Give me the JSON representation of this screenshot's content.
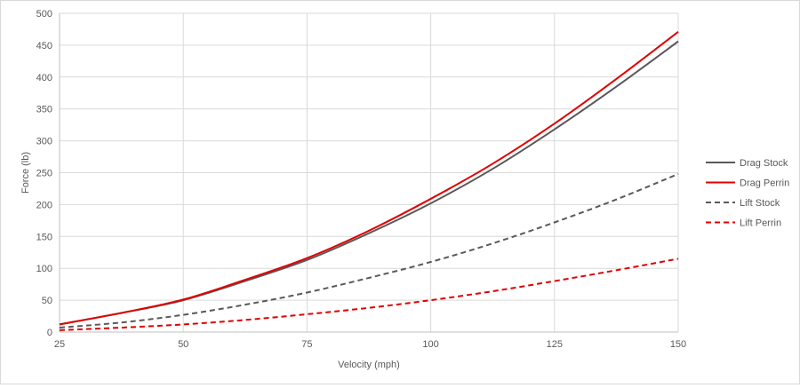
{
  "chart_data": {
    "type": "line",
    "xlabel": "Velocity (mph)",
    "ylabel": "Force (lb)",
    "xlim": [
      25,
      150
    ],
    "ylim": [
      0,
      500
    ],
    "x_ticks": [
      25,
      50,
      75,
      100,
      125,
      150
    ],
    "y_ticks": [
      0,
      50,
      100,
      150,
      200,
      250,
      300,
      350,
      400,
      450,
      500
    ],
    "grid": true,
    "legend_position": "right",
    "series": [
      {
        "name": "Drag Stock",
        "color": "#595959",
        "dash": "solid",
        "x": [
          25,
          37.5,
          50,
          62.5,
          75,
          87.5,
          100,
          112.5,
          125,
          137.5,
          150
        ],
        "y": [
          12,
          30,
          50,
          80,
          113,
          155,
          202,
          256,
          318,
          385,
          456
        ]
      },
      {
        "name": "Drag Perrin",
        "color": "#e00000",
        "dash": "solid",
        "x": [
          25,
          37.5,
          50,
          62.5,
          75,
          87.5,
          100,
          112.5,
          125,
          137.5,
          150
        ],
        "y": [
          12,
          30,
          51,
          82,
          116,
          159,
          209,
          264,
          327,
          397,
          471
        ]
      },
      {
        "name": "Lift Stock",
        "color": "#595959",
        "dash": "dashed",
        "x": [
          25,
          37.5,
          50,
          62.5,
          75,
          87.5,
          100,
          112.5,
          125,
          137.5,
          150
        ],
        "y": [
          7,
          15,
          27,
          43,
          62,
          85,
          110,
          139,
          172,
          208,
          248
        ]
      },
      {
        "name": "Lift Perrin",
        "color": "#e00000",
        "dash": "dashed",
        "x": [
          25,
          37.5,
          50,
          62.5,
          75,
          87.5,
          100,
          112.5,
          125,
          137.5,
          150
        ],
        "y": [
          3,
          7,
          12,
          19,
          28,
          38,
          50,
          64,
          80,
          97,
          115
        ]
      }
    ]
  }
}
